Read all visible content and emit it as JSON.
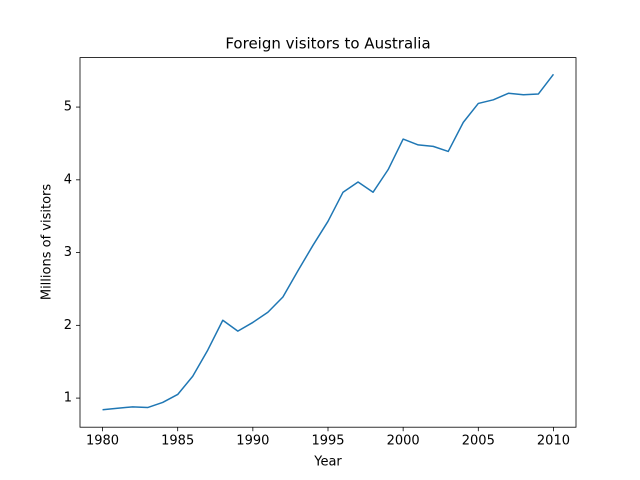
{
  "chart_data": {
    "type": "line",
    "title": "Foreign visitors to Australia",
    "x_label": "Year",
    "y_label": "Millions of visitors",
    "x": [
      1980,
      1981,
      1982,
      1983,
      1984,
      1985,
      1986,
      1987,
      1988,
      1989,
      1990,
      1991,
      1992,
      1993,
      1994,
      1995,
      1996,
      1997,
      1998,
      1999,
      2000,
      2001,
      2002,
      2003,
      2004,
      2005,
      2006,
      2007,
      2008,
      2009,
      2010
    ],
    "series": [
      {
        "color": "#1f77b4",
        "values": [
          0.84,
          0.86,
          0.88,
          0.87,
          0.94,
          1.05,
          1.3,
          1.66,
          2.07,
          1.92,
          2.04,
          2.18,
          2.39,
          2.75,
          3.1,
          3.43,
          3.83,
          3.97,
          3.83,
          4.14,
          4.56,
          4.48,
          4.46,
          4.39,
          4.79,
          5.05,
          5.1,
          5.19,
          5.17,
          5.18,
          5.45
        ]
      }
    ],
    "xlim": [
      1978.5,
      2011.5
    ],
    "xticks": [
      1980,
      1985,
      1990,
      1995,
      2000,
      2005,
      2010
    ],
    "ylim": [
      0.6,
      5.68
    ],
    "yticks": [
      1,
      2,
      3,
      4,
      5
    ],
    "grid": false
  }
}
